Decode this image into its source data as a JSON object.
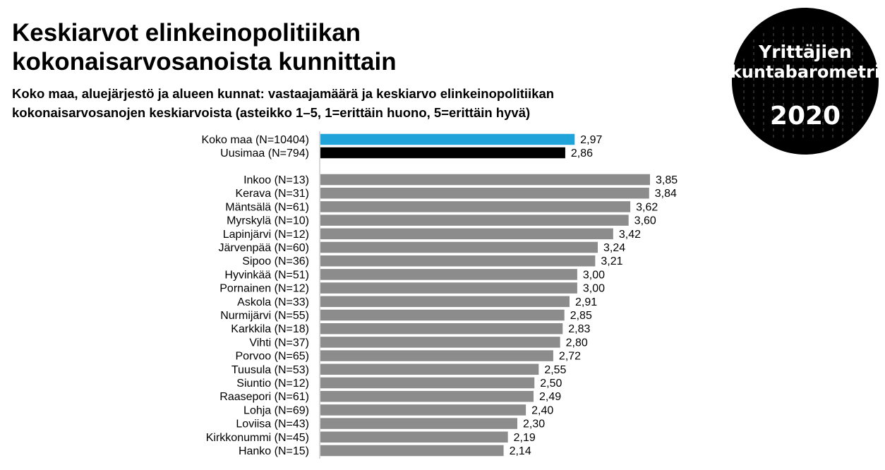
{
  "header": {
    "title_line1": "Keskiarvot elinkeinopolitiikan",
    "title_line2": "kokonaisarvosanoista kunnittain",
    "subtitle_line1": "Koko maa, aluejärjestö ja alueen kunnat: vastaajamäärä ja keskiarvo elinkeinopolitiikan",
    "subtitle_line2": "kokonaisarvosanojen keskiarvoista (asteikko 1–5,  1=erittäin huono, 5=erittäin hyvä)"
  },
  "logo": {
    "line1": "Yrittäjien",
    "line2": "kuntabarometri",
    "year": "2020"
  },
  "colors": {
    "koko_maa": "#1fa3d9",
    "region": "#000000",
    "municipality": "#8c8c8c"
  },
  "chart_data": {
    "type": "bar",
    "orientation": "horizontal",
    "grid": false,
    "categories": [
      "Koko maa (N=10404)",
      "Uusimaa (N=794)",
      "Inkoo (N=13)",
      "Kerava (N=31)",
      "Mäntsälä (N=61)",
      "Myrskylä (N=10)",
      "Lapinjärvi (N=12)",
      "Järvenpää (N=60)",
      "Sipoo (N=36)",
      "Hyvinkää (N=51)",
      "Pornainen (N=12)",
      "Askola (N=33)",
      "Nurmijärvi (N=55)",
      "Karkkila (N=18)",
      "Vihti (N=37)",
      "Porvoo (N=65)",
      "Tuusula (N=53)",
      "Siuntio (N=12)",
      "Raasepori (N=61)",
      "Lohja (N=69)",
      "Loviisa (N=43)",
      "Kirkkonummi (N=45)",
      "Hanko (N=15)"
    ],
    "values": [
      2.97,
      2.86,
      3.85,
      3.84,
      3.62,
      3.6,
      3.42,
      3.24,
      3.21,
      3.0,
      3.0,
      2.91,
      2.85,
      2.83,
      2.8,
      2.72,
      2.55,
      2.5,
      2.49,
      2.4,
      2.3,
      2.19,
      2.14
    ],
    "value_labels": [
      "2,97",
      "2,86",
      "3,85",
      "3,84",
      "3,62",
      "3,60",
      "3,42",
      "3,24",
      "3,21",
      "3,00",
      "3,00",
      "2,91",
      "2,85",
      "2,83",
      "2,80",
      "2,72",
      "2,55",
      "2,50",
      "2,49",
      "2,40",
      "2,30",
      "2,19",
      "2,14"
    ],
    "groups": [
      "koko_maa",
      "region",
      "municipality",
      "municipality",
      "municipality",
      "municipality",
      "municipality",
      "municipality",
      "municipality",
      "municipality",
      "municipality",
      "municipality",
      "municipality",
      "municipality",
      "municipality",
      "municipality",
      "municipality",
      "municipality",
      "municipality",
      "municipality",
      "municipality",
      "municipality",
      "municipality"
    ],
    "xlim": [
      0,
      5
    ]
  }
}
